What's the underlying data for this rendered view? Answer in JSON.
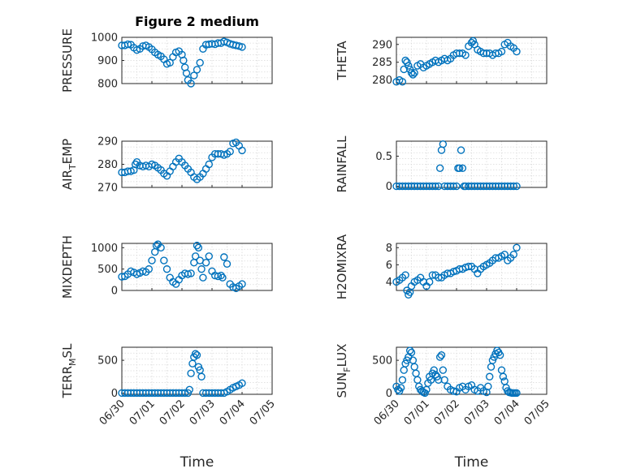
{
  "figure": {
    "title": "Figure 2 medium",
    "marker_color": "#0072BD"
  },
  "chart_data": [
    {
      "type": "scatter",
      "title": "Figure 2 medium",
      "ylabel": "PRESSURE",
      "ylim": [
        800,
        1000
      ],
      "yticks": [
        800,
        900,
        1000
      ],
      "xlim": [
        0,
        5
      ],
      "xticks": [
        0,
        1,
        2,
        3,
        4,
        5
      ],
      "x": [
        0.0,
        0.1,
        0.2,
        0.3,
        0.4,
        0.5,
        0.6,
        0.7,
        0.8,
        0.9,
        1.0,
        1.1,
        1.2,
        1.3,
        1.4,
        1.5,
        1.6,
        1.7,
        1.8,
        1.9,
        2.0,
        2.05,
        2.1,
        2.15,
        2.2,
        2.3,
        2.4,
        2.5,
        2.6,
        2.7,
        2.8,
        2.9,
        3.0,
        3.1,
        3.2,
        3.3,
        3.4,
        3.5,
        3.6,
        3.7,
        3.8,
        3.9,
        4.0
      ],
      "y": [
        965,
        965,
        970,
        968,
        955,
        945,
        950,
        962,
        965,
        958,
        948,
        935,
        925,
        918,
        905,
        885,
        890,
        915,
        935,
        940,
        925,
        900,
        870,
        845,
        815,
        800,
        835,
        860,
        890,
        950,
        968,
        970,
        972,
        970,
        975,
        975,
        982,
        978,
        972,
        968,
        965,
        962,
        958
      ]
    },
    {
      "type": "scatter",
      "ylabel": "THETA",
      "ylim": [
        279,
        292
      ],
      "yticks": [
        280,
        285,
        290
      ],
      "xlim": [
        0,
        5
      ],
      "xticks": [
        0,
        1,
        2,
        3,
        4,
        5
      ],
      "x": [
        0.0,
        0.1,
        0.2,
        0.25,
        0.3,
        0.35,
        0.4,
        0.45,
        0.5,
        0.55,
        0.6,
        0.7,
        0.8,
        0.9,
        1.0,
        1.1,
        1.2,
        1.3,
        1.4,
        1.5,
        1.6,
        1.7,
        1.8,
        1.9,
        2.0,
        2.1,
        2.2,
        2.3,
        2.4,
        2.5,
        2.55,
        2.6,
        2.7,
        2.8,
        2.9,
        3.0,
        3.1,
        3.2,
        3.3,
        3.4,
        3.5,
        3.6,
        3.7,
        3.8,
        3.9,
        4.0
      ],
      "y": [
        279.5,
        280.0,
        279.5,
        283.0,
        285.5,
        285.0,
        284.0,
        283.0,
        282.0,
        281.5,
        282.0,
        284.0,
        284.5,
        283.5,
        284.0,
        284.5,
        285.0,
        285.5,
        285.0,
        285.5,
        286.0,
        285.5,
        286.0,
        287.0,
        287.5,
        287.5,
        287.5,
        287.0,
        289.5,
        290.5,
        291.0,
        290.0,
        288.5,
        288.0,
        287.5,
        287.5,
        287.5,
        287.0,
        287.5,
        287.5,
        288.0,
        290.0,
        290.5,
        289.5,
        289.0,
        288.0
      ]
    },
    {
      "type": "scatter",
      "ylabel": "AIR_TEMP",
      "ylabel_main": "AIR",
      "ylabel_sub": "T",
      "ylabel_rest": "EMP",
      "ylim": [
        270,
        290
      ],
      "yticks": [
        270,
        280,
        290
      ],
      "xlim": [
        0,
        5
      ],
      "xticks": [
        0,
        1,
        2,
        3,
        4,
        5
      ],
      "x": [
        0.0,
        0.1,
        0.2,
        0.3,
        0.4,
        0.45,
        0.5,
        0.6,
        0.7,
        0.8,
        0.9,
        1.0,
        1.1,
        1.2,
        1.3,
        1.4,
        1.5,
        1.6,
        1.7,
        1.8,
        1.9,
        2.0,
        2.1,
        2.2,
        2.3,
        2.4,
        2.5,
        2.6,
        2.7,
        2.8,
        2.9,
        3.0,
        3.1,
        3.2,
        3.3,
        3.4,
        3.5,
        3.6,
        3.7,
        3.8,
        3.9,
        4.0
      ],
      "y": [
        276.5,
        276.5,
        277.0,
        277.0,
        277.5,
        280.0,
        281.0,
        279.5,
        279.0,
        279.5,
        279.0,
        280.0,
        279.5,
        278.5,
        277.5,
        276.0,
        275.0,
        277.0,
        279.0,
        281.0,
        282.5,
        281.0,
        279.5,
        278.0,
        276.5,
        274.5,
        273.5,
        274.5,
        276.0,
        278.0,
        280.0,
        283.0,
        284.5,
        284.5,
        284.5,
        284.0,
        284.5,
        285.5,
        289.0,
        289.5,
        288.0,
        286.0
      ]
    },
    {
      "type": "scatter",
      "ylabel": "RAINFALL",
      "ylim": [
        -0.02,
        0.75
      ],
      "yticks": [
        0,
        0.5
      ],
      "ytick_labels": [
        "0",
        "0.5"
      ],
      "xlim": [
        0,
        5
      ],
      "xticks": [
        0,
        1,
        2,
        3,
        4,
        5
      ],
      "x": [
        0.0,
        0.1,
        0.2,
        0.3,
        0.4,
        0.5,
        0.6,
        0.7,
        0.8,
        0.9,
        1.0,
        1.1,
        1.2,
        1.3,
        1.4,
        1.45,
        1.5,
        1.55,
        1.6,
        1.7,
        1.8,
        1.9,
        2.0,
        2.05,
        2.1,
        2.15,
        2.2,
        2.25,
        2.3,
        2.4,
        2.5,
        2.6,
        2.7,
        2.8,
        2.9,
        3.0,
        3.1,
        3.2,
        3.3,
        3.4,
        3.5,
        3.6,
        3.7,
        3.8,
        3.9,
        4.0
      ],
      "y": [
        0,
        0,
        0,
        0,
        0,
        0,
        0,
        0,
        0,
        0,
        0,
        0,
        0,
        0,
        0,
        0.3,
        0.6,
        0.7,
        0,
        0,
        0,
        0,
        0,
        0.3,
        0.3,
        0.6,
        0.3,
        0,
        0,
        0,
        0,
        0,
        0,
        0,
        0,
        0,
        0,
        0,
        0,
        0,
        0,
        0,
        0,
        0,
        0,
        0
      ]
    },
    {
      "type": "scatter",
      "ylabel": "MIXDEPTH",
      "ylim": [
        0,
        1100
      ],
      "yticks": [
        0,
        500,
        1000
      ],
      "xlim": [
        0,
        5
      ],
      "xticks": [
        0,
        1,
        2,
        3,
        4,
        5
      ],
      "x": [
        0.0,
        0.1,
        0.2,
        0.3,
        0.4,
        0.5,
        0.6,
        0.7,
        0.8,
        0.9,
        1.0,
        1.1,
        1.15,
        1.2,
        1.3,
        1.4,
        1.5,
        1.6,
        1.7,
        1.8,
        1.9,
        2.0,
        2.1,
        2.2,
        2.3,
        2.4,
        2.45,
        2.5,
        2.55,
        2.6,
        2.65,
        2.7,
        2.8,
        2.9,
        3.0,
        3.1,
        3.2,
        3.3,
        3.35,
        3.4,
        3.5,
        3.6,
        3.7,
        3.8,
        3.9,
        4.0
      ],
      "y": [
        320,
        330,
        380,
        450,
        420,
        380,
        410,
        450,
        430,
        500,
        700,
        900,
        1050,
        1080,
        1000,
        700,
        500,
        300,
        200,
        150,
        250,
        350,
        400,
        380,
        400,
        650,
        800,
        1050,
        1000,
        700,
        500,
        300,
        650,
        800,
        450,
        350,
        330,
        350,
        300,
        780,
        620,
        150,
        80,
        50,
        100,
        150
      ]
    },
    {
      "type": "scatter",
      "ylabel": "H2OMIXRA",
      "ylim": [
        3,
        8.5
      ],
      "yticks": [
        4,
        6,
        8
      ],
      "xlim": [
        0,
        5
      ],
      "xticks": [
        0,
        1,
        2,
        3,
        4,
        5
      ],
      "x": [
        0.0,
        0.1,
        0.2,
        0.3,
        0.35,
        0.4,
        0.45,
        0.5,
        0.6,
        0.7,
        0.8,
        0.9,
        1.0,
        1.1,
        1.2,
        1.3,
        1.4,
        1.5,
        1.6,
        1.7,
        1.8,
        1.9,
        2.0,
        2.1,
        2.2,
        2.3,
        2.4,
        2.5,
        2.6,
        2.7,
        2.8,
        2.9,
        3.0,
        3.1,
        3.2,
        3.3,
        3.4,
        3.5,
        3.6,
        3.7,
        3.8,
        3.9,
        4.0
      ],
      "y": [
        4.0,
        4.2,
        4.5,
        4.8,
        3.0,
        2.5,
        2.8,
        3.5,
        4.0,
        4.2,
        4.5,
        4.0,
        3.5,
        4.0,
        4.8,
        4.8,
        4.5,
        4.5,
        4.8,
        5.0,
        5.0,
        5.2,
        5.3,
        5.5,
        5.5,
        5.7,
        5.8,
        5.8,
        5.5,
        5.0,
        5.5,
        5.8,
        6.0,
        6.2,
        6.5,
        6.8,
        6.8,
        7.0,
        7.2,
        6.5,
        6.8,
        7.2,
        8.0
      ]
    },
    {
      "type": "scatter",
      "ylabel": "TERR_MSL",
      "ylabel_main": "TERR",
      "ylabel_sub": "M",
      "ylabel_rest": "SL",
      "ylim": [
        -20,
        700
      ],
      "yticks": [
        0,
        500
      ],
      "xlim": [
        0,
        5
      ],
      "xticks": [
        0,
        1,
        2,
        3,
        4,
        5
      ],
      "xtick_labels": [
        "06/30",
        "07/01",
        "07/02",
        "07/03",
        "07/04",
        "07/05"
      ],
      "xlabel": "Time",
      "x": [
        0.0,
        0.1,
        0.2,
        0.3,
        0.4,
        0.5,
        0.6,
        0.7,
        0.8,
        0.9,
        1.0,
        1.1,
        1.2,
        1.3,
        1.4,
        1.5,
        1.6,
        1.7,
        1.8,
        1.9,
        2.0,
        2.1,
        2.2,
        2.25,
        2.3,
        2.35,
        2.4,
        2.45,
        2.5,
        2.55,
        2.6,
        2.65,
        2.7,
        2.8,
        2.9,
        3.0,
        3.1,
        3.2,
        3.3,
        3.4,
        3.5,
        3.6,
        3.7,
        3.8,
        3.9,
        4.0
      ],
      "y": [
        0,
        0,
        0,
        0,
        0,
        0,
        0,
        0,
        0,
        0,
        0,
        0,
        0,
        0,
        0,
        0,
        0,
        0,
        0,
        0,
        0,
        0,
        0,
        50,
        300,
        450,
        550,
        600,
        580,
        400,
        350,
        250,
        0,
        0,
        0,
        0,
        0,
        0,
        0,
        0,
        20,
        50,
        80,
        100,
        120,
        150
      ]
    },
    {
      "type": "scatter",
      "ylabel": "SUN_FLUX",
      "ylabel_main": "SUN",
      "ylabel_sub": "F",
      "ylabel_rest": "LUX",
      "ylim": [
        -20,
        700
      ],
      "yticks": [
        0,
        500
      ],
      "xlim": [
        0,
        5
      ],
      "xticks": [
        0,
        1,
        2,
        3,
        4,
        5
      ],
      "xtick_labels": [
        "06/30",
        "07/01",
        "07/02",
        "07/03",
        "07/04",
        "07/05"
      ],
      "xlabel": "Time",
      "x": [
        0.0,
        0.05,
        0.1,
        0.15,
        0.2,
        0.25,
        0.3,
        0.35,
        0.4,
        0.45,
        0.5,
        0.55,
        0.6,
        0.65,
        0.7,
        0.75,
        0.8,
        0.85,
        0.9,
        0.95,
        1.0,
        1.05,
        1.1,
        1.15,
        1.2,
        1.25,
        1.3,
        1.35,
        1.4,
        1.45,
        1.5,
        1.55,
        1.6,
        1.7,
        1.8,
        1.9,
        2.0,
        2.1,
        2.2,
        2.3,
        2.4,
        2.5,
        2.6,
        2.7,
        2.8,
        2.9,
        3.0,
        3.05,
        3.1,
        3.15,
        3.2,
        3.25,
        3.3,
        3.35,
        3.4,
        3.45,
        3.5,
        3.55,
        3.6,
        3.65,
        3.7,
        3.75,
        3.8,
        3.85,
        3.9,
        3.95,
        4.0
      ],
      "y": [
        100,
        50,
        30,
        80,
        200,
        350,
        450,
        500,
        550,
        650,
        620,
        500,
        400,
        300,
        200,
        100,
        50,
        30,
        10,
        0,
        50,
        150,
        250,
        200,
        300,
        350,
        280,
        250,
        200,
        550,
        580,
        350,
        200,
        100,
        50,
        30,
        20,
        80,
        100,
        50,
        100,
        120,
        50,
        30,
        80,
        30,
        10,
        100,
        250,
        400,
        500,
        550,
        600,
        650,
        620,
        580,
        350,
        250,
        180,
        80,
        30,
        10,
        5,
        0,
        0,
        0,
        0
      ]
    }
  ]
}
